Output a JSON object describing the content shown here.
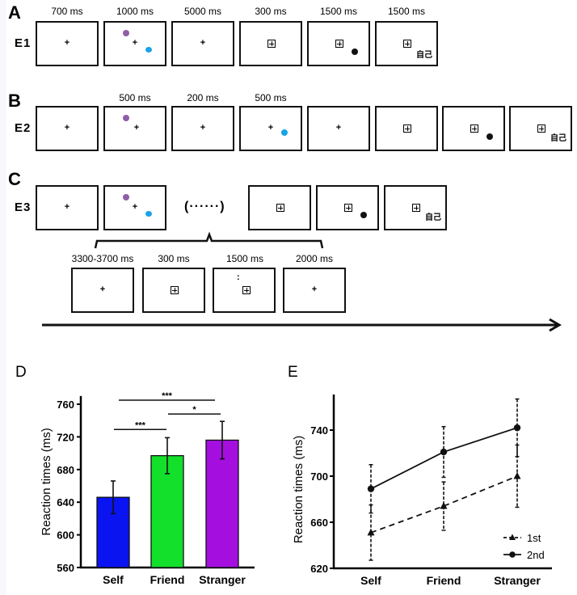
{
  "panels": {
    "A": {
      "letter": "A",
      "row_label": "E1",
      "durations": [
        "700 ms",
        "1000 ms",
        "5000 ms",
        "300 ms",
        "1500 ms",
        "1500 ms"
      ]
    },
    "B": {
      "letter": "B",
      "row_label": "E2",
      "durations": [
        "",
        "500 ms",
        "200 ms",
        "500 ms",
        "",
        "",
        "",
        ""
      ]
    },
    "C": {
      "letter": "C",
      "row_label": "E3",
      "ellipsis": "(······)",
      "sub_durations": [
        "3300-3700 ms",
        "300 ms",
        "1500 ms",
        "2000 ms"
      ]
    },
    "D": {
      "letter": "D"
    },
    "E": {
      "letter": "E"
    }
  },
  "stimuli": {
    "fixation": "+",
    "self_label_cjk": "自己",
    "cue_colon": ":",
    "colors": {
      "purple_dot": "#8e5ea8",
      "blue_dot": "#1aa3e6",
      "black_dot": "#111111"
    }
  },
  "chart_data": [
    {
      "type": "bar",
      "panel": "D",
      "title": "",
      "xlabel": "",
      "ylabel": "Reaction times (ms)",
      "categories": [
        "Self",
        "Friend",
        "Stranger"
      ],
      "values": [
        646,
        697,
        716
      ],
      "errors": [
        20,
        22,
        23
      ],
      "colors": [
        "#0a14f0",
        "#12e02a",
        "#a40fe0"
      ],
      "ylim": [
        560,
        770
      ],
      "yticks": [
        560,
        600,
        640,
        680,
        720,
        760
      ],
      "grid": false,
      "significance": [
        {
          "from": "Self",
          "to": "Friend",
          "label": "***",
          "y": 729
        },
        {
          "from": "Friend",
          "to": "Stranger",
          "label": "*",
          "y": 748
        },
        {
          "from": "Self",
          "to": "Stranger",
          "label": "***",
          "y": 765
        }
      ]
    },
    {
      "type": "line",
      "panel": "E",
      "title": "",
      "xlabel": "",
      "ylabel": "Reaction times (ms)",
      "categories": [
        "Self",
        "Friend",
        "Stranger"
      ],
      "series": [
        {
          "name": "1st",
          "marker": "triangle",
          "style": "dashed",
          "values": [
            651,
            674,
            700
          ],
          "errors": [
            24,
            21,
            27
          ]
        },
        {
          "name": "2nd",
          "marker": "circle",
          "style": "solid",
          "values": [
            689,
            721,
            742
          ],
          "errors": [
            21,
            22,
            25
          ]
        }
      ],
      "ylim": [
        620,
        770
      ],
      "yticks": [
        620,
        660,
        700,
        740
      ],
      "grid": false,
      "legend": "bottom-right"
    }
  ]
}
